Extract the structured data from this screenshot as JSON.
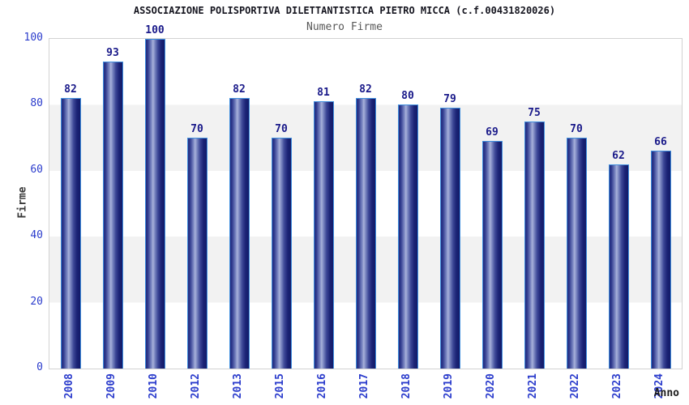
{
  "title": "ASSOCIAZIONE POLISPORTIVA DILETTANTISTICA PIETRO MICCA (c.f.00431820026)",
  "subtitle": "Numero Firme",
  "chart_data": {
    "type": "bar",
    "title": "ASSOCIAZIONE POLISPORTIVA DILETTANTISTICA PIETRO MICCA (c.f.00431820026)",
    "subtitle": "Numero Firme",
    "categories": [
      "2008",
      "2009",
      "2010",
      "2012",
      "2013",
      "2015",
      "2016",
      "2017",
      "2018",
      "2019",
      "2020",
      "2021",
      "2022",
      "2023",
      "2024"
    ],
    "values": [
      82,
      93,
      100,
      70,
      82,
      70,
      81,
      82,
      80,
      79,
      69,
      75,
      70,
      62,
      66
    ],
    "xlabel": "Anno",
    "ylabel": "Firme",
    "ylim": [
      0,
      100
    ],
    "yticks": [
      0,
      20,
      40,
      60,
      80,
      100
    ],
    "legend_position": "none",
    "grid": "alternating-horizontal-bands",
    "band_values": [
      [
        20,
        40
      ],
      [
        60,
        80
      ]
    ]
  },
  "colors": {
    "tick_label_blue": "#2b3ccc",
    "value_label_navy": "#1a1a8a",
    "bar_dark_navy": "#1c2476",
    "bar_highlight": "#a8b1da",
    "bar_border_blue": "#3f8ede",
    "band_gray": "#f2f2f2",
    "plot_border_gray": "#d2d2d2",
    "title_color": "#15151f",
    "subtitle_gray": "#585858",
    "background": "#ffffff"
  }
}
